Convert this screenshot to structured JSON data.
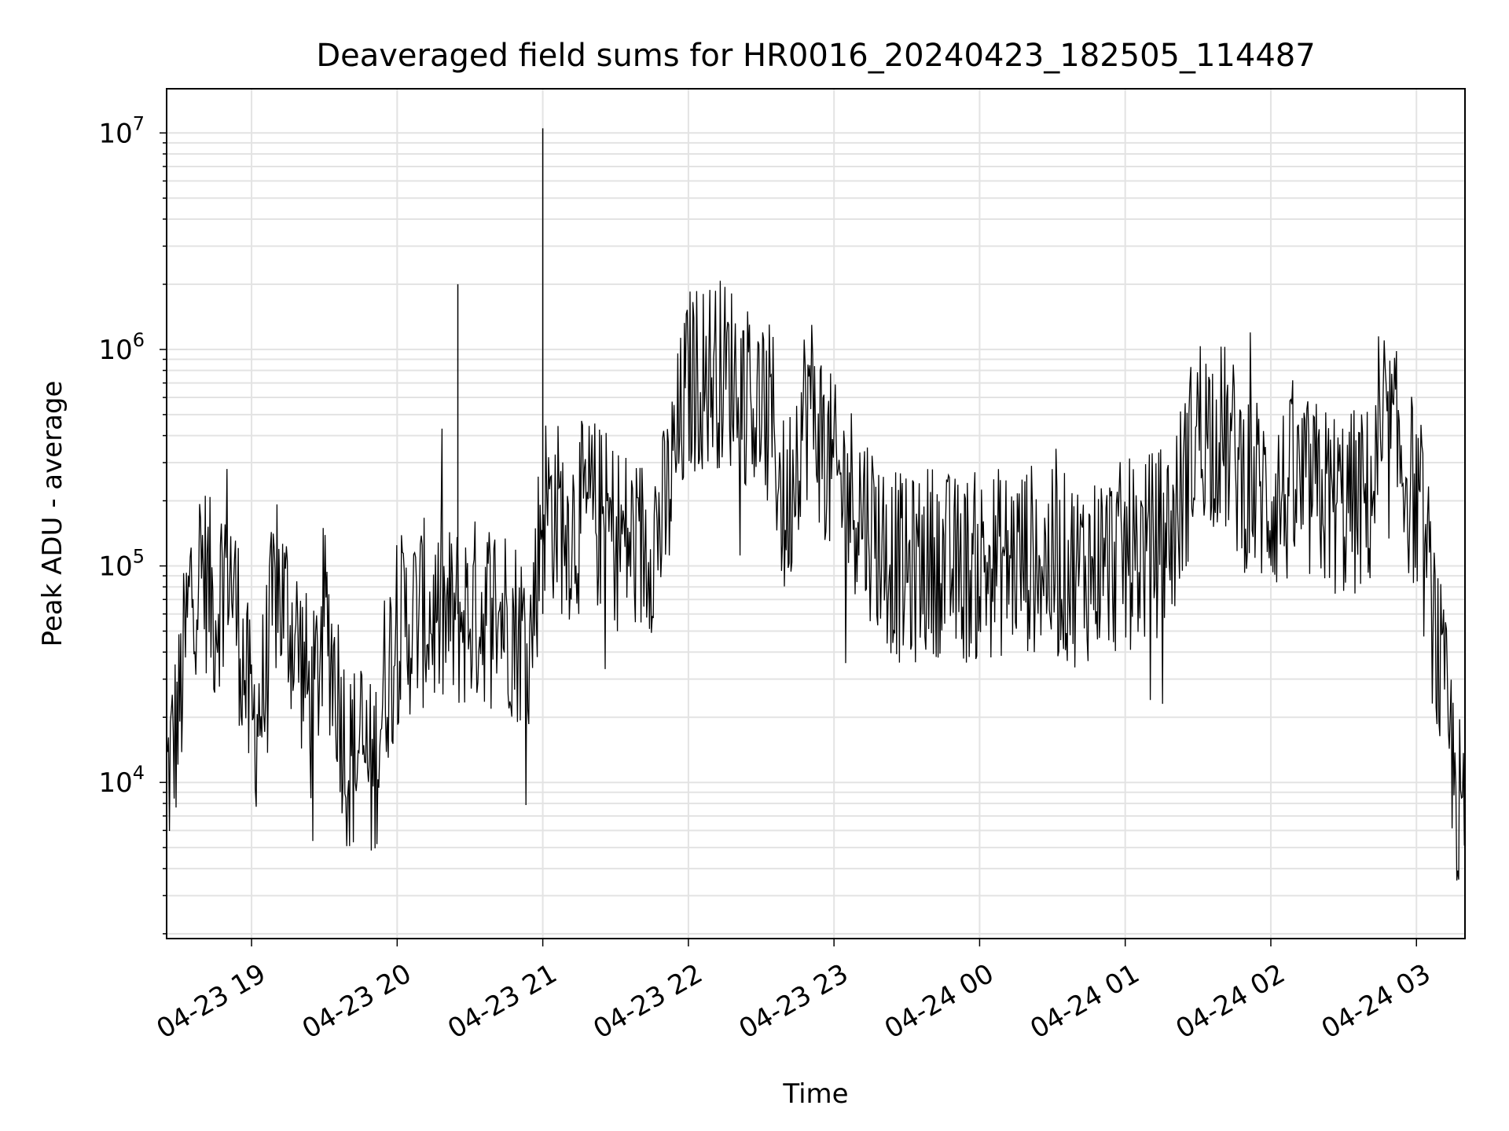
{
  "chart_data": {
    "type": "line",
    "title": "Deaveraged field sums for HR0016_20240423_182505_114487",
    "xlabel": "Time",
    "ylabel": "Peak ADU - average",
    "yscale": "log",
    "ylim": [
      1900,
      16000000
    ],
    "xlim": [
      "2024-04-23 18:25",
      "2024-04-24 03:20"
    ],
    "x_ticks": [
      "04-23 19",
      "04-23 20",
      "04-23 21",
      "04-23 22",
      "04-23 23",
      "04-24 00",
      "04-24 01",
      "04-24 02",
      "04-24 03"
    ],
    "y_ticks": [
      {
        "base": "10",
        "exp": "4"
      },
      {
        "base": "10",
        "exp": "5"
      },
      {
        "base": "10",
        "exp": "6"
      },
      {
        "base": "10",
        "exp": "7"
      }
    ],
    "grid": true,
    "line_color": "#000000",
    "series": [
      {
        "x": [
          "2024-04-23 18:25",
          "2024-04-23 18:30",
          "2024-04-23 18:35",
          "2024-04-23 18:40",
          "2024-04-23 18:45",
          "2024-04-23 18:50",
          "2024-04-23 18:55",
          "2024-04-23 19:00",
          "2024-04-23 19:05",
          "2024-04-23 19:10",
          "2024-04-23 19:15",
          "2024-04-23 19:20",
          "2024-04-23 19:25",
          "2024-04-23 19:30",
          "2024-04-23 19:35",
          "2024-04-23 19:40",
          "2024-04-23 19:45",
          "2024-04-23 19:50",
          "2024-04-23 19:55",
          "2024-04-23 20:00",
          "2024-04-23 20:10",
          "2024-04-23 20:20",
          "2024-04-23 20:30",
          "2024-04-23 20:40",
          "2024-04-23 20:45",
          "2024-04-23 20:50",
          "2024-04-23 20:55",
          "2024-04-23 21:00",
          "2024-04-23 21:05",
          "2024-04-23 21:10",
          "2024-04-23 21:20",
          "2024-04-23 21:30",
          "2024-04-23 21:40",
          "2024-04-23 21:50",
          "2024-04-23 22:00",
          "2024-04-23 22:10",
          "2024-04-23 22:20",
          "2024-04-23 22:30",
          "2024-04-23 22:35",
          "2024-04-23 22:40",
          "2024-04-23 22:45",
          "2024-04-23 22:50",
          "2024-04-23 23:00",
          "2024-04-23 23:10",
          "2024-04-23 23:20",
          "2024-04-23 23:30",
          "2024-04-23 23:40",
          "2024-04-23 23:50",
          "2024-04-24 00:00",
          "2024-04-24 00:10",
          "2024-04-24 00:20",
          "2024-04-24 00:30",
          "2024-04-24 00:40",
          "2024-04-24 00:50",
          "2024-04-24 01:00",
          "2024-04-24 01:10",
          "2024-04-24 01:20",
          "2024-04-24 01:30",
          "2024-04-24 01:40",
          "2024-04-24 01:50",
          "2024-04-24 02:00",
          "2024-04-24 02:10",
          "2024-04-24 02:20",
          "2024-04-24 02:30",
          "2024-04-24 02:40",
          "2024-04-24 02:50",
          "2024-04-24 03:00",
          "2024-04-24 03:05",
          "2024-04-24 03:10",
          "2024-04-24 03:15",
          "2024-04-24 03:20"
        ],
        "values": [
          10000,
          20000,
          80000,
          100000,
          60000,
          120000,
          50000,
          18000,
          25000,
          80000,
          60000,
          40000,
          20000,
          60000,
          30000,
          12000,
          15000,
          10000,
          30000,
          50000,
          60000,
          55000,
          60000,
          65000,
          60000,
          50000,
          45000,
          200000,
          180000,
          150000,
          180000,
          140000,
          120000,
          160000,
          700000,
          800000,
          750000,
          500000,
          450000,
          150000,
          400000,
          600000,
          250000,
          200000,
          120000,
          90000,
          110000,
          95000,
          100000,
          105000,
          110000,
          100000,
          95000,
          105000,
          110000,
          120000,
          150000,
          450000,
          400000,
          250000,
          200000,
          220000,
          210000,
          190000,
          200000,
          400000,
          200000,
          90000,
          30000,
          12000,
          5000
        ]
      }
    ],
    "spikes": [
      {
        "x": "2024-04-23 20:25",
        "y": 2000000
      },
      {
        "x": "2024-04-23 21:00",
        "y": 10500000
      }
    ]
  }
}
